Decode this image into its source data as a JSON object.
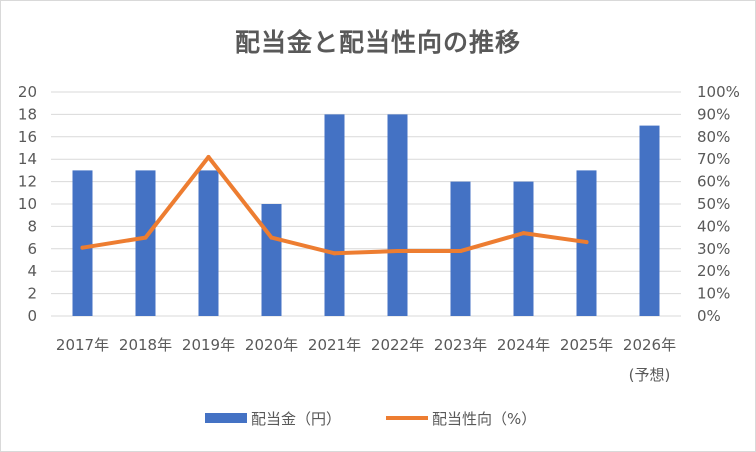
{
  "chart_data": {
    "type": "bar+line",
    "title": "配当金と配当性向の推移",
    "categories": [
      "2017年",
      "2018年",
      "2019年",
      "2020年",
      "2021年",
      "2022年",
      "2023年",
      "2024年",
      "2025年",
      "2026年"
    ],
    "category_sublabels": [
      "",
      "",
      "",
      "",
      "",
      "",
      "",
      "",
      "",
      "(予想)"
    ],
    "series": [
      {
        "name": "配当金（円）",
        "type": "bar",
        "axis": "left",
        "color": "#4472C4",
        "values": [
          13,
          13,
          13,
          10,
          18,
          18,
          12,
          12,
          13,
          17
        ]
      },
      {
        "name": "配当性向（%）",
        "type": "line",
        "axis": "right",
        "color": "#ED7D31",
        "values": [
          30.5,
          35,
          71,
          35,
          28,
          29,
          29,
          37,
          33,
          null
        ]
      }
    ],
    "y_left": {
      "min": 0,
      "max": 20,
      "ticks": [
        "0",
        "2",
        "4",
        "6",
        "8",
        "10",
        "12",
        "14",
        "16",
        "18",
        "20"
      ]
    },
    "y_right": {
      "min": 0,
      "max": 100,
      "ticks": [
        "0%",
        "10%",
        "20%",
        "30%",
        "40%",
        "50%",
        "60%",
        "70%",
        "80%",
        "90%",
        "100%"
      ]
    },
    "grid": true,
    "legend": "bottom"
  }
}
